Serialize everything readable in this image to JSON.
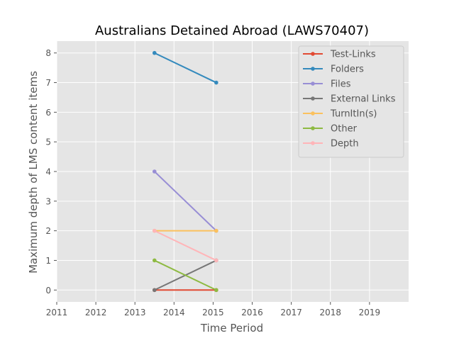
{
  "chart_data": {
    "type": "line",
    "title": "Australians Detained Abroad (LAWS70407)",
    "xlabel": "Time Period",
    "ylabel": "Maximum depth of LMS content items",
    "xlim": [
      2011,
      2020
    ],
    "ylim": [
      -0.4,
      8.4
    ],
    "x_ticks": [
      "2011",
      "2012",
      "2013",
      "2014",
      "2015",
      "2016",
      "2017",
      "2018",
      "2019"
    ],
    "y_ticks": [
      "0",
      "1",
      "2",
      "3",
      "4",
      "5",
      "6",
      "7",
      "8"
    ],
    "grid": true,
    "legend_position": "top-right",
    "x": [
      2013.5,
      2015.08
    ],
    "series": [
      {
        "name": "Test-Links",
        "color": "#E24A33",
        "values": [
          0,
          0
        ]
      },
      {
        "name": "Folders",
        "color": "#348ABD",
        "values": [
          8,
          7
        ]
      },
      {
        "name": "Files",
        "color": "#988ED5",
        "values": [
          4,
          2
        ]
      },
      {
        "name": "External Links",
        "color": "#777777",
        "values": [
          0,
          1
        ]
      },
      {
        "name": "TurnItIn(s)",
        "color": "#FBC15E",
        "values": [
          2,
          2
        ]
      },
      {
        "name": "Other",
        "color": "#8EBA42",
        "values": [
          1,
          0
        ]
      },
      {
        "name": "Depth",
        "color": "#FFB5B8",
        "values": [
          2,
          1
        ]
      }
    ]
  }
}
